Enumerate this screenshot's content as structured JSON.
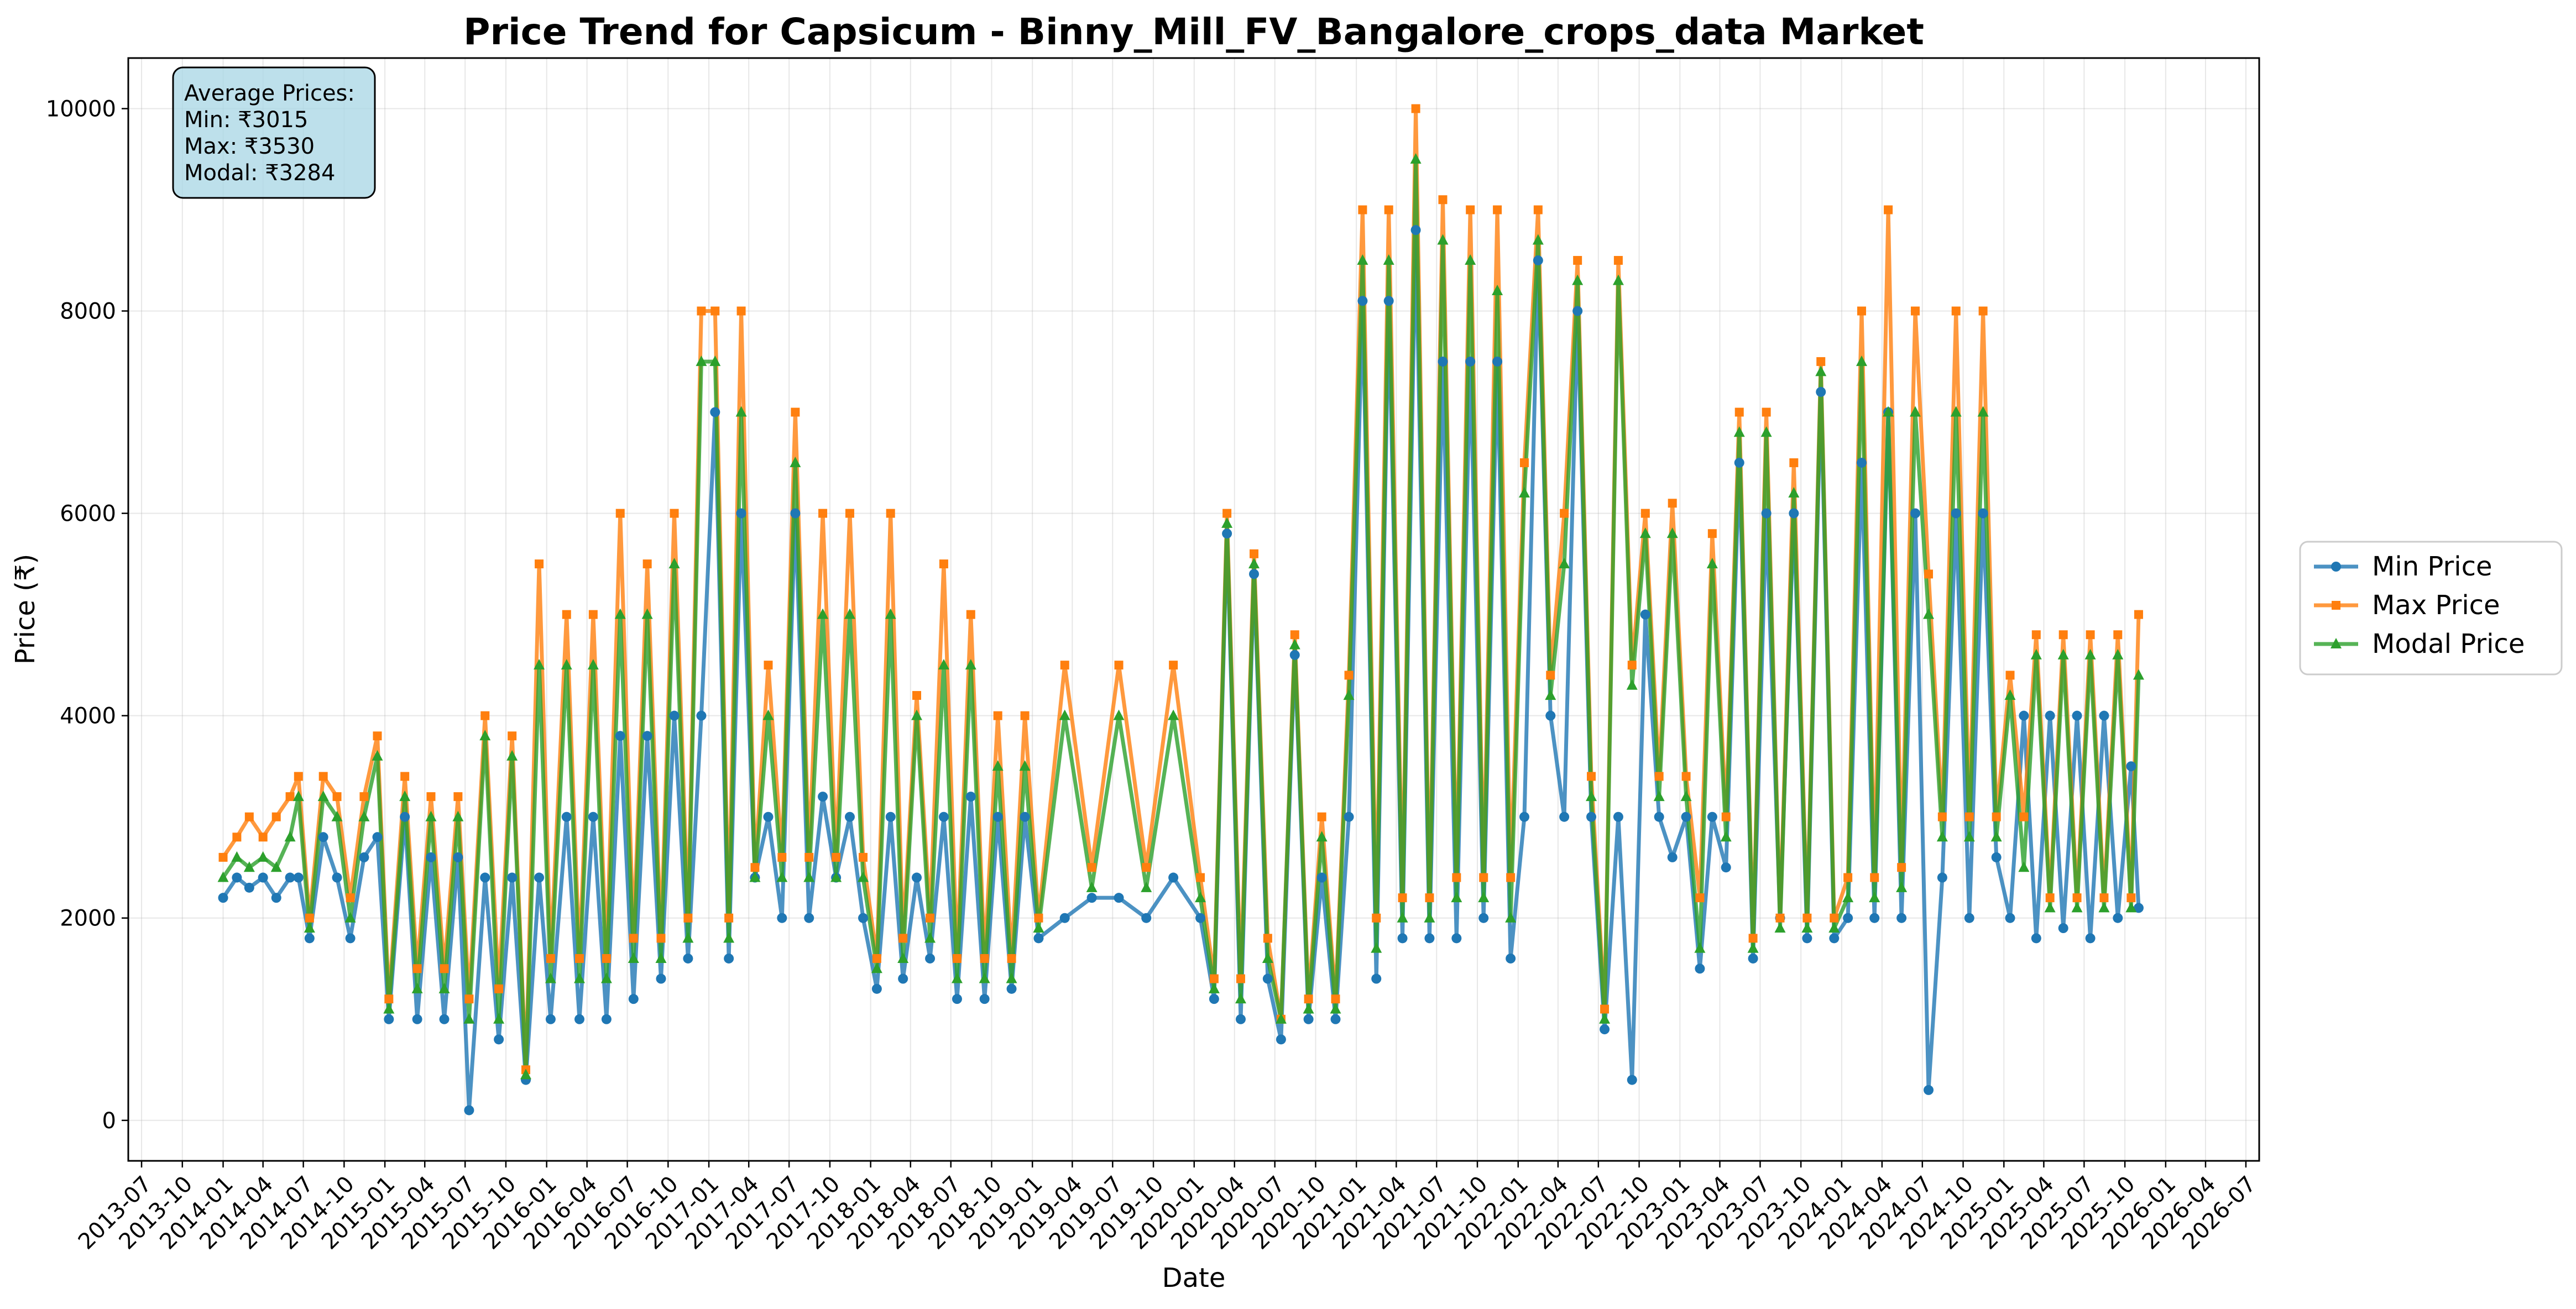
{
  "chart_data": {
    "type": "line",
    "title": "Price Trend for Capsicum - Binny_Mill_FV_Bangalore_crops_data Market",
    "xlabel": "Date",
    "ylabel": "Price (₹)",
    "xlim": [
      "2013-06-01",
      "2026-07-31"
    ],
    "ylim": [
      -400,
      10500
    ],
    "grid": true,
    "legend_position": "outside-right",
    "x_ticks": [
      "2013-07",
      "2013-10",
      "2014-01",
      "2014-04",
      "2014-07",
      "2014-10",
      "2015-01",
      "2015-04",
      "2015-07",
      "2015-10",
      "2016-01",
      "2016-04",
      "2016-07",
      "2016-10",
      "2017-01",
      "2017-04",
      "2017-07",
      "2017-10",
      "2018-01",
      "2018-04",
      "2018-07",
      "2018-10",
      "2019-01",
      "2019-04",
      "2019-07",
      "2019-10",
      "2020-01",
      "2020-04",
      "2020-07",
      "2020-10",
      "2021-01",
      "2021-04",
      "2021-07",
      "2021-10",
      "2022-01",
      "2022-04",
      "2022-07",
      "2022-10",
      "2023-01",
      "2023-04",
      "2023-07",
      "2023-10",
      "2024-01",
      "2024-04",
      "2024-07",
      "2024-10",
      "2025-01",
      "2025-04",
      "2025-07",
      "2025-10",
      "2026-01",
      "2026-04",
      "2026-07"
    ],
    "y_ticks": [
      0,
      2000,
      4000,
      6000,
      8000,
      10000
    ],
    "y_tick_labels": [
      "0",
      "2000",
      "4000",
      "6000",
      "8000",
      "10000"
    ],
    "stats_box": {
      "lines": [
        "Average Prices:",
        "Min: ₹3015",
        "Max: ₹3530",
        "Modal: ₹3284"
      ],
      "background": "#add8e6"
    },
    "series": [
      {
        "name": "Min Price",
        "color": "#1f77b4",
        "marker": "circle",
        "x": [
          "2014-01-01",
          "2014-02-01",
          "2014-03-01",
          "2014-04-01",
          "2014-05-01",
          "2014-06-01",
          "2014-06-20",
          "2014-07-15",
          "2014-08-15",
          "2014-09-15",
          "2014-10-15",
          "2014-11-15",
          "2014-12-15",
          "2015-01-10",
          "2015-02-15",
          "2015-03-15",
          "2015-04-15",
          "2015-05-15",
          "2015-06-15",
          "2015-07-10",
          "2015-08-15",
          "2015-09-15",
          "2015-10-15",
          "2015-11-15",
          "2015-12-15",
          "2016-01-10",
          "2016-02-15",
          "2016-03-15",
          "2016-04-15",
          "2016-05-15",
          "2016-06-15",
          "2016-07-15",
          "2016-08-15",
          "2016-09-15",
          "2016-10-15",
          "2016-11-15",
          "2016-12-15",
          "2017-01-15",
          "2017-02-15",
          "2017-03-15",
          "2017-04-15",
          "2017-05-15",
          "2017-06-15",
          "2017-07-15",
          "2017-08-15",
          "2017-09-15",
          "2017-10-15",
          "2017-11-15",
          "2017-12-15",
          "2018-01-15",
          "2018-02-15",
          "2018-03-15",
          "2018-04-15",
          "2018-05-15",
          "2018-06-15",
          "2018-07-15",
          "2018-08-15",
          "2018-09-15",
          "2018-10-15",
          "2018-11-15",
          "2018-12-15",
          "2019-01-15",
          "2019-03-15",
          "2019-05-15",
          "2019-07-15",
          "2019-09-15",
          "2019-11-15",
          "2020-01-15",
          "2020-02-15",
          "2020-03-15",
          "2020-04-15",
          "2020-05-15",
          "2020-06-15",
          "2020-07-15",
          "2020-08-15",
          "2020-09-15",
          "2020-10-15",
          "2020-11-15",
          "2020-12-15",
          "2021-01-15",
          "2021-02-15",
          "2021-03-15",
          "2021-04-15",
          "2021-05-15",
          "2021-06-15",
          "2021-07-15",
          "2021-08-15",
          "2021-09-15",
          "2021-10-15",
          "2021-11-15",
          "2021-12-15",
          "2022-01-15",
          "2022-02-15",
          "2022-03-15",
          "2022-04-15",
          "2022-05-15",
          "2022-06-15",
          "2022-07-15",
          "2022-08-15",
          "2022-09-15",
          "2022-10-15",
          "2022-11-15",
          "2022-12-15",
          "2023-01-15",
          "2023-02-15",
          "2023-03-15",
          "2023-04-15",
          "2023-05-15",
          "2023-06-15",
          "2023-07-15",
          "2023-08-15",
          "2023-09-15",
          "2023-10-15",
          "2023-11-15",
          "2023-12-15",
          "2024-01-15",
          "2024-02-15",
          "2024-03-15",
          "2024-04-15",
          "2024-05-15",
          "2024-06-15",
          "2024-07-15",
          "2024-08-15",
          "2024-09-15",
          "2024-10-15",
          "2024-11-15",
          "2024-12-15",
          "2025-01-15",
          "2025-02-15",
          "2025-03-15",
          "2025-04-15",
          "2025-05-15",
          "2025-06-15",
          "2025-07-15",
          "2025-08-15",
          "2025-09-15",
          "2025-10-15",
          "2025-11-01"
        ],
        "values": [
          2200,
          2400,
          2300,
          2400,
          2200,
          2400,
          2400,
          1800,
          2800,
          2400,
          1800,
          2600,
          2800,
          1000,
          3000,
          1000,
          2600,
          1000,
          2600,
          100,
          2400,
          800,
          2400,
          400,
          2400,
          1000,
          3000,
          1000,
          3000,
          1000,
          3800,
          1200,
          3800,
          1400,
          4000,
          1600,
          4000,
          7000,
          1600,
          6000,
          2400,
          3000,
          2000,
          6000,
          2000,
          3200,
          2400,
          3000,
          2000,
          1300,
          3000,
          1400,
          2400,
          1600,
          3000,
          1200,
          3200,
          1200,
          3000,
          1300,
          3000,
          1800,
          2000,
          2200,
          2200,
          2000,
          2400,
          2000,
          1200,
          5800,
          1000,
          5400,
          1400,
          800,
          4600,
          1000,
          2400,
          1000,
          3000,
          8100,
          1400,
          8100,
          1800,
          8800,
          1800,
          7500,
          1800,
          7500,
          2000,
          7500,
          1600,
          3000,
          8500,
          4000,
          3000,
          8000,
          3000,
          900,
          3000,
          400,
          5000,
          3000,
          2600,
          3000,
          1500,
          3000,
          2500,
          6500,
          1600,
          6000,
          2000,
          6000,
          1800,
          7200,
          1800,
          2000,
          6500,
          2000,
          7000,
          2000,
          6000,
          300,
          2400,
          6000,
          2000,
          6000,
          2600,
          2000,
          4000,
          1800,
          4000,
          1900,
          4000,
          1800,
          4000,
          2000,
          3500,
          2100
        ]
      },
      {
        "name": "Max Price",
        "color": "#ff7f0e",
        "marker": "square",
        "x": [
          "2014-01-01",
          "2014-02-01",
          "2014-03-01",
          "2014-04-01",
          "2014-05-01",
          "2014-06-01",
          "2014-06-20",
          "2014-07-15",
          "2014-08-15",
          "2014-09-15",
          "2014-10-15",
          "2014-11-15",
          "2014-12-15",
          "2015-01-10",
          "2015-02-15",
          "2015-03-15",
          "2015-04-15",
          "2015-05-15",
          "2015-06-15",
          "2015-07-10",
          "2015-08-15",
          "2015-09-15",
          "2015-10-15",
          "2015-11-15",
          "2015-12-15",
          "2016-01-10",
          "2016-02-15",
          "2016-03-15",
          "2016-04-15",
          "2016-05-15",
          "2016-06-15",
          "2016-07-15",
          "2016-08-15",
          "2016-09-15",
          "2016-10-15",
          "2016-11-15",
          "2016-12-15",
          "2017-01-15",
          "2017-02-15",
          "2017-03-15",
          "2017-04-15",
          "2017-05-15",
          "2017-06-15",
          "2017-07-15",
          "2017-08-15",
          "2017-09-15",
          "2017-10-15",
          "2017-11-15",
          "2017-12-15",
          "2018-01-15",
          "2018-02-15",
          "2018-03-15",
          "2018-04-15",
          "2018-05-15",
          "2018-06-15",
          "2018-07-15",
          "2018-08-15",
          "2018-09-15",
          "2018-10-15",
          "2018-11-15",
          "2018-12-15",
          "2019-01-15",
          "2019-03-15",
          "2019-05-15",
          "2019-07-15",
          "2019-09-15",
          "2019-11-15",
          "2020-01-15",
          "2020-02-15",
          "2020-03-15",
          "2020-04-15",
          "2020-05-15",
          "2020-06-15",
          "2020-07-15",
          "2020-08-15",
          "2020-09-15",
          "2020-10-15",
          "2020-11-15",
          "2020-12-15",
          "2021-01-15",
          "2021-02-15",
          "2021-03-15",
          "2021-04-15",
          "2021-05-15",
          "2021-06-15",
          "2021-07-15",
          "2021-08-15",
          "2021-09-15",
          "2021-10-15",
          "2021-11-15",
          "2021-12-15",
          "2022-01-15",
          "2022-02-15",
          "2022-03-15",
          "2022-04-15",
          "2022-05-15",
          "2022-06-15",
          "2022-07-15",
          "2022-08-15",
          "2022-09-15",
          "2022-10-15",
          "2022-11-15",
          "2022-12-15",
          "2023-01-15",
          "2023-02-15",
          "2023-03-15",
          "2023-04-15",
          "2023-05-15",
          "2023-06-15",
          "2023-07-15",
          "2023-08-15",
          "2023-09-15",
          "2023-10-15",
          "2023-11-15",
          "2023-12-15",
          "2024-01-15",
          "2024-02-15",
          "2024-03-15",
          "2024-04-15",
          "2024-05-15",
          "2024-06-15",
          "2024-07-15",
          "2024-08-15",
          "2024-09-15",
          "2024-10-15",
          "2024-11-15",
          "2024-12-15",
          "2025-01-15",
          "2025-02-15",
          "2025-03-15",
          "2025-04-15",
          "2025-05-15",
          "2025-06-15",
          "2025-07-15",
          "2025-08-15",
          "2025-09-15",
          "2025-10-15",
          "2025-11-01"
        ],
        "values": [
          2600,
          2800,
          3000,
          2800,
          3000,
          3200,
          3400,
          2000,
          3400,
          3200,
          2200,
          3200,
          3800,
          1200,
          3400,
          1500,
          3200,
          1500,
          3200,
          1200,
          4000,
          1300,
          3800,
          500,
          5500,
          1600,
          5000,
          1600,
          5000,
          1600,
          6000,
          1800,
          5500,
          1800,
          6000,
          2000,
          8000,
          8000,
          2000,
          8000,
          2500,
          4500,
          2600,
          7000,
          2600,
          6000,
          2600,
          6000,
          2600,
          1600,
          6000,
          1800,
          4200,
          2000,
          5500,
          1600,
          5000,
          1600,
          4000,
          1600,
          4000,
          2000,
          4500,
          2500,
          4500,
          2500,
          4500,
          2400,
          1400,
          6000,
          1400,
          5600,
          1800,
          1000,
          4800,
          1200,
          3000,
          1200,
          4400,
          9000,
          2000,
          9000,
          2200,
          10000,
          2200,
          9100,
          2400,
          9000,
          2400,
          9000,
          2400,
          6500,
          9000,
          4400,
          6000,
          8500,
          3400,
          1100,
          8500,
          4500,
          6000,
          3400,
          6100,
          3400,
          2200,
          5800,
          3000,
          7000,
          1800,
          7000,
          2000,
          6500,
          2000,
          7500,
          2000,
          2400,
          8000,
          2400,
          9000,
          2500,
          8000,
          5400,
          3000,
          8000,
          3000,
          8000,
          3000,
          4400,
          3000,
          4800,
          2200,
          4800,
          2200,
          4800,
          2200,
          4800,
          2200,
          5000
        ]
      },
      {
        "name": "Modal Price",
        "color": "#2ca02c",
        "marker": "triangle",
        "x": [
          "2014-01-01",
          "2014-02-01",
          "2014-03-01",
          "2014-04-01",
          "2014-05-01",
          "2014-06-01",
          "2014-06-20",
          "2014-07-15",
          "2014-08-15",
          "2014-09-15",
          "2014-10-15",
          "2014-11-15",
          "2014-12-15",
          "2015-01-10",
          "2015-02-15",
          "2015-03-15",
          "2015-04-15",
          "2015-05-15",
          "2015-06-15",
          "2015-07-10",
          "2015-08-15",
          "2015-09-15",
          "2015-10-15",
          "2015-11-15",
          "2015-12-15",
          "2016-01-10",
          "2016-02-15",
          "2016-03-15",
          "2016-04-15",
          "2016-05-15",
          "2016-06-15",
          "2016-07-15",
          "2016-08-15",
          "2016-09-15",
          "2016-10-15",
          "2016-11-15",
          "2016-12-15",
          "2017-01-15",
          "2017-02-15",
          "2017-03-15",
          "2017-04-15",
          "2017-05-15",
          "2017-06-15",
          "2017-07-15",
          "2017-08-15",
          "2017-09-15",
          "2017-10-15",
          "2017-11-15",
          "2017-12-15",
          "2018-01-15",
          "2018-02-15",
          "2018-03-15",
          "2018-04-15",
          "2018-05-15",
          "2018-06-15",
          "2018-07-15",
          "2018-08-15",
          "2018-09-15",
          "2018-10-15",
          "2018-11-15",
          "2018-12-15",
          "2019-01-15",
          "2019-03-15",
          "2019-05-15",
          "2019-07-15",
          "2019-09-15",
          "2019-11-15",
          "2020-01-15",
          "2020-02-15",
          "2020-03-15",
          "2020-04-15",
          "2020-05-15",
          "2020-06-15",
          "2020-07-15",
          "2020-08-15",
          "2020-09-15",
          "2020-10-15",
          "2020-11-15",
          "2020-12-15",
          "2021-01-15",
          "2021-02-15",
          "2021-03-15",
          "2021-04-15",
          "2021-05-15",
          "2021-06-15",
          "2021-07-15",
          "2021-08-15",
          "2021-09-15",
          "2021-10-15",
          "2021-11-15",
          "2021-12-15",
          "2022-01-15",
          "2022-02-15",
          "2022-03-15",
          "2022-04-15",
          "2022-05-15",
          "2022-06-15",
          "2022-07-15",
          "2022-08-15",
          "2022-09-15",
          "2022-10-15",
          "2022-11-15",
          "2022-12-15",
          "2023-01-15",
          "2023-02-15",
          "2023-03-15",
          "2023-04-15",
          "2023-05-15",
          "2023-06-15",
          "2023-07-15",
          "2023-08-15",
          "2023-09-15",
          "2023-10-15",
          "2023-11-15",
          "2023-12-15",
          "2024-01-15",
          "2024-02-15",
          "2024-03-15",
          "2024-04-15",
          "2024-05-15",
          "2024-06-15",
          "2024-07-15",
          "2024-08-15",
          "2024-09-15",
          "2024-10-15",
          "2024-11-15",
          "2024-12-15",
          "2025-01-15",
          "2025-02-15",
          "2025-03-15",
          "2025-04-15",
          "2025-05-15",
          "2025-06-15",
          "2025-07-15",
          "2025-08-15",
          "2025-09-15",
          "2025-10-15",
          "2025-11-01"
        ],
        "values": [
          2400,
          2600,
          2500,
          2600,
          2500,
          2800,
          3200,
          1900,
          3200,
          3000,
          2000,
          3000,
          3600,
          1100,
          3200,
          1300,
          3000,
          1300,
          3000,
          1000,
          3800,
          1000,
          3600,
          450,
          4500,
          1400,
          4500,
          1400,
          4500,
          1400,
          5000,
          1600,
          5000,
          1600,
          5500,
          1800,
          7500,
          7500,
          1800,
          7000,
          2400,
          4000,
          2400,
          6500,
          2400,
          5000,
          2400,
          5000,
          2400,
          1500,
          5000,
          1600,
          4000,
          1800,
          4500,
          1400,
          4500,
          1400,
          3500,
          1400,
          3500,
          1900,
          4000,
          2300,
          4000,
          2300,
          4000,
          2200,
          1300,
          5900,
          1200,
          5500,
          1600,
          1000,
          4700,
          1100,
          2800,
          1100,
          4200,
          8500,
          1700,
          8500,
          2000,
          9500,
          2000,
          8700,
          2200,
          8500,
          2200,
          8200,
          2000,
          6200,
          8700,
          4200,
          5500,
          8300,
          3200,
          1000,
          8300,
          4300,
          5800,
          3200,
          5800,
          3200,
          1700,
          5500,
          2800,
          6800,
          1700,
          6800,
          1900,
          6200,
          1900,
          7400,
          1900,
          2200,
          7500,
          2200,
          7000,
          2300,
          7000,
          5000,
          2800,
          7000,
          2800,
          7000,
          2800,
          4200,
          2500,
          4600,
          2100,
          4600,
          2100,
          4600,
          2100,
          4600,
          2100,
          4400
        ]
      }
    ]
  }
}
